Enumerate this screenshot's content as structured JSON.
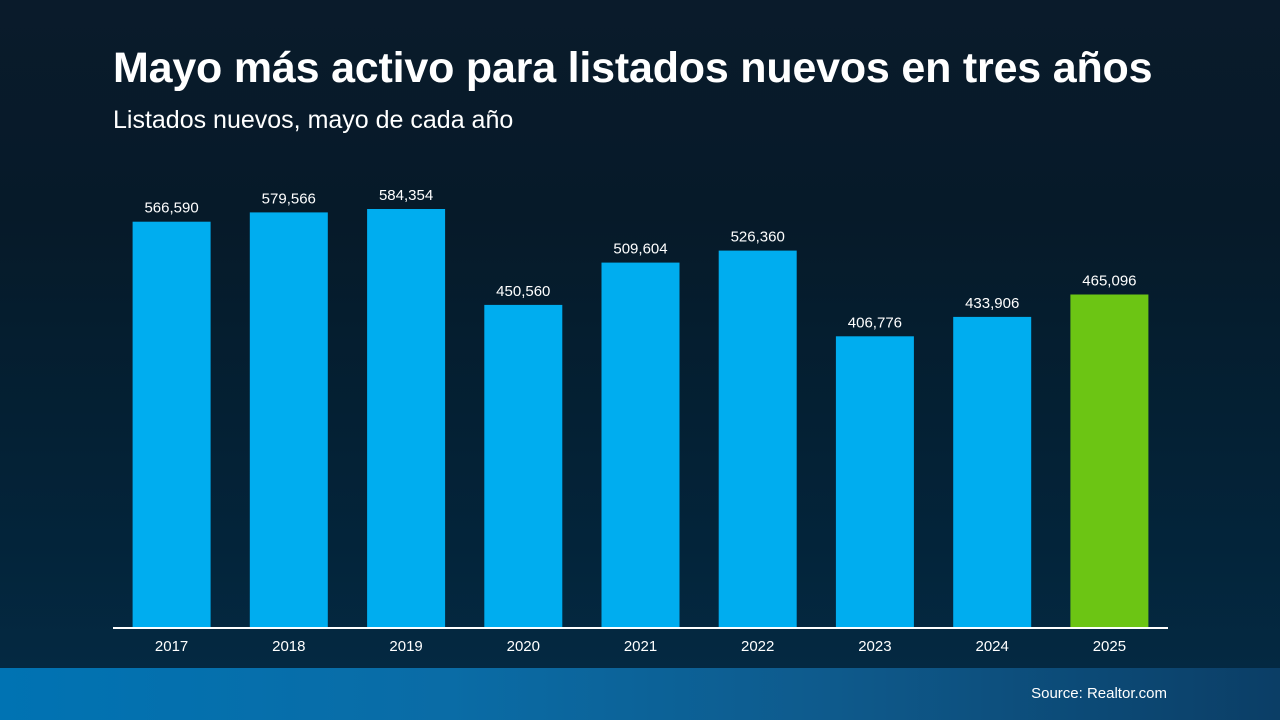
{
  "title": "Mayo más activo para listados nuevos en tres años",
  "subtitle": "Listados nuevos, mayo de cada año",
  "source": "Source: Realtor.com",
  "colors": {
    "bar_default": "#00adef",
    "bar_highlight": "#6cc514",
    "axis": "#ffffff",
    "label": "#ffffff"
  },
  "chart_data": {
    "type": "bar",
    "title": "Mayo más activo para listados nuevos en tres años",
    "subtitle": "Listados nuevos, mayo de cada año",
    "categories": [
      "2017",
      "2018",
      "2019",
      "2020",
      "2021",
      "2022",
      "2023",
      "2024",
      "2025"
    ],
    "values": [
      566590,
      579566,
      584354,
      450560,
      509604,
      526360,
      406776,
      433906,
      465096
    ],
    "data_labels": [
      "566,590",
      "579,566",
      "584,354",
      "450,560",
      "509,604",
      "526,360",
      "406,776",
      "433,906",
      "465,096"
    ],
    "highlight_category": "2025",
    "ylim": [
      0,
      584354
    ],
    "grid": false,
    "legend": "none"
  }
}
